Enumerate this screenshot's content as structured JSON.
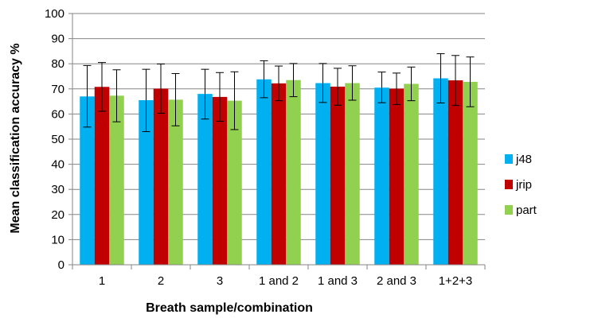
{
  "chart_data": {
    "type": "bar",
    "title": "",
    "xlabel": "Breath sample/combination",
    "ylabel": "Mean classification accuracy %",
    "ylim": [
      0,
      100
    ],
    "yticks": [
      "0",
      "10",
      "20",
      "30",
      "40",
      "50",
      "60",
      "70",
      "80",
      "90",
      "100"
    ],
    "grid": true,
    "legend_position": "right",
    "categories": [
      "1",
      "2",
      "3",
      "1 and 2",
      "1 and 3",
      "2 and 3",
      "1+2+3"
    ],
    "series": [
      {
        "name": "j48",
        "color": "#00B0F0",
        "values": [
          67,
          65.5,
          68,
          73.8,
          72.3,
          70.5,
          74.2
        ],
        "err_high": [
          79.3,
          77.8,
          77.8,
          81.2,
          80.1,
          76.7,
          84
        ],
        "err_low": [
          54.8,
          53,
          58,
          66.5,
          64.6,
          64.5,
          64.4
        ]
      },
      {
        "name": "jrip",
        "color": "#C00000",
        "values": [
          70.8,
          70.1,
          66.8,
          72.2,
          70.9,
          70.1,
          73.4
        ],
        "err_high": [
          80.5,
          79.9,
          76.5,
          79.1,
          78.2,
          76.3,
          83.3
        ],
        "err_low": [
          61.1,
          60.3,
          57.1,
          65.3,
          63.5,
          63.8,
          63.4
        ]
      },
      {
        "name": "part",
        "color": "#92D050",
        "values": [
          67.3,
          65.7,
          65.3,
          73.5,
          72.3,
          72,
          72.8
        ],
        "err_high": [
          77.6,
          76.1,
          76.8,
          80.1,
          79.2,
          78.7,
          82.7
        ],
        "err_low": [
          56.9,
          55.3,
          53.8,
          66.9,
          65.5,
          65.3,
          62.9
        ]
      }
    ]
  }
}
